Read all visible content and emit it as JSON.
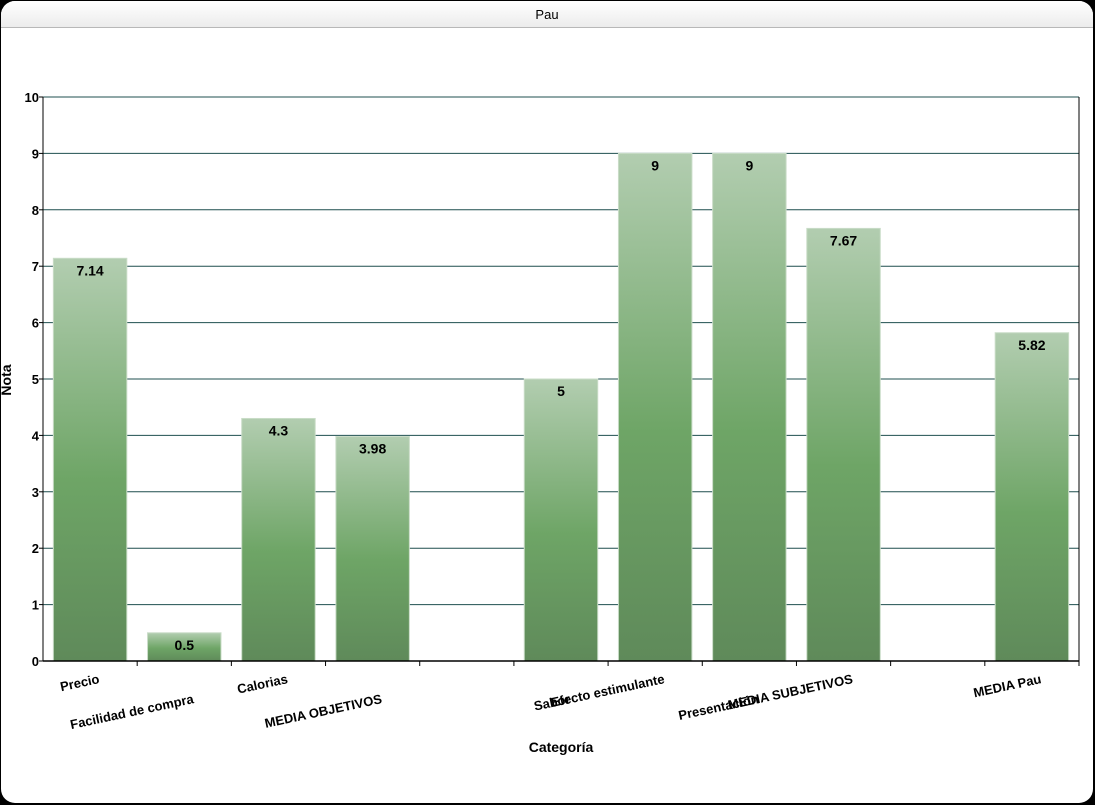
{
  "window": {
    "title": "Pau"
  },
  "colors": {
    "bar_top": "#b2cdb0",
    "bar_mid": "#6ea566",
    "bar_bottom": "#5f8a5a",
    "grid": "#1f4f4f",
    "axis": "#000000"
  },
  "chart_data": {
    "type": "bar",
    "title": "",
    "xlabel": "Categoría",
    "ylabel": "Nota",
    "ylim": [
      0,
      10
    ],
    "yticks": [
      "0",
      "1",
      "2",
      "3",
      "4",
      "5",
      "6",
      "7",
      "8",
      "9",
      "10"
    ],
    "grid": true,
    "categories": [
      "Precio",
      "Facilidad de compra",
      "Calorias",
      "MEDIA OBJETIVOS",
      "",
      "Sabor",
      "Efecto estimulante",
      "Presentación",
      "MEDIA SUBJETIVOS",
      "",
      "MEDIA Pau"
    ],
    "values": [
      7.14,
      0.5,
      4.3,
      3.98,
      null,
      5,
      9,
      9,
      7.67,
      null,
      5.82
    ],
    "data_labels": [
      "7.14",
      "0.5",
      "4.3",
      "3.98",
      "",
      "5",
      "9",
      "9",
      "7.67",
      "",
      "5.82"
    ]
  }
}
